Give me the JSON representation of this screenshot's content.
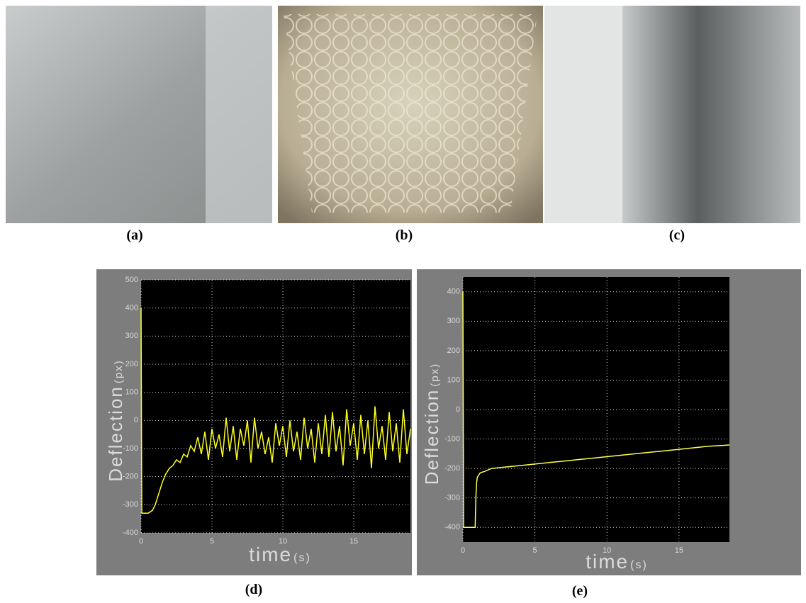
{
  "figure": {
    "labels": [
      "(a)",
      "(b)",
      "(c)",
      "(d)",
      "(e)"
    ]
  },
  "chart_data": [
    {
      "type": "line",
      "ylabel": "Deflection",
      "ylabel_unit": "(px)",
      "xlabel": "time",
      "xlabel_unit": "(s)",
      "xlim": [
        0,
        19
      ],
      "xticks": [
        0,
        5,
        10,
        15
      ],
      "ylim": [
        -400,
        500
      ],
      "yticks": [
        -400,
        -300,
        -200,
        -100,
        0,
        100,
        200,
        300,
        400,
        500
      ],
      "grid": true,
      "series": [
        {
          "color": "#ffff1a",
          "x": [
            0,
            0.05,
            0.5,
            0.8,
            1.0,
            1.25,
            1.5,
            1.75,
            2.0,
            2.25,
            2.5,
            2.75,
            3.0,
            3.25,
            3.5,
            3.75,
            4.0,
            4.25,
            4.5,
            4.75,
            5.0,
            5.25,
            5.5,
            5.75,
            6.0,
            6.25,
            6.5,
            6.75,
            7.0,
            7.25,
            7.5,
            7.75,
            8.0,
            8.25,
            8.5,
            8.75,
            9.0,
            9.25,
            9.5,
            9.75,
            10.0,
            10.25,
            10.5,
            10.75,
            11.0,
            11.25,
            11.5,
            11.75,
            12.0,
            12.25,
            12.5,
            12.75,
            13.0,
            13.25,
            13.5,
            13.75,
            14.0,
            14.25,
            14.5,
            14.75,
            15.0,
            15.25,
            15.5,
            15.75,
            16.0,
            16.25,
            16.5,
            16.75,
            17.0,
            17.25,
            17.5,
            17.75,
            18.0,
            18.25,
            18.5,
            18.75,
            19.0
          ],
          "values": [
            400,
            -330,
            -330,
            -320,
            -300,
            -260,
            -220,
            -190,
            -170,
            -160,
            -140,
            -150,
            -120,
            -130,
            -90,
            -110,
            -60,
            -120,
            -40,
            -140,
            -30,
            -100,
            -50,
            -130,
            10,
            -110,
            -20,
            -140,
            -30,
            -90,
            0,
            -150,
            10,
            -100,
            -40,
            -120,
            -60,
            -150,
            -10,
            -90,
            -20,
            -130,
            0,
            -110,
            -40,
            -140,
            10,
            -100,
            -30,
            -150,
            -10,
            -120,
            20,
            -130,
            30,
            -110,
            -20,
            -160,
            40,
            -90,
            -10,
            -140,
            20,
            -120,
            0,
            -170,
            50,
            -100,
            -20,
            -140,
            30,
            -110,
            -10,
            -150,
            40,
            -120,
            -30
          ]
        }
      ]
    },
    {
      "type": "line",
      "ylabel": "Deflection",
      "ylabel_unit": "(px)",
      "xlabel": "time",
      "xlabel_unit": "(s)",
      "xlim": [
        0,
        18.5
      ],
      "xticks": [
        0,
        5,
        10,
        15
      ],
      "ylim": [
        -450,
        450
      ],
      "yticks": [
        -400,
        -300,
        -200,
        -100,
        0,
        100,
        200,
        300,
        400
      ],
      "grid": true,
      "series": [
        {
          "color": "#ffff4d",
          "x": [
            0,
            0.05,
            0.5,
            0.85,
            0.9,
            0.95,
            1.0,
            1.2,
            1.5,
            2,
            3,
            4,
            5,
            6,
            7,
            8,
            9,
            10,
            11,
            12,
            13,
            14,
            15,
            16,
            17,
            18,
            18.5
          ],
          "values": [
            400,
            -400,
            -400,
            -400,
            -300,
            -250,
            -230,
            -215,
            -210,
            -200,
            -195,
            -190,
            -185,
            -180,
            -175,
            -170,
            -165,
            -160,
            -155,
            -150,
            -145,
            -140,
            -135,
            -130,
            -125,
            -122,
            -120
          ]
        }
      ]
    }
  ]
}
